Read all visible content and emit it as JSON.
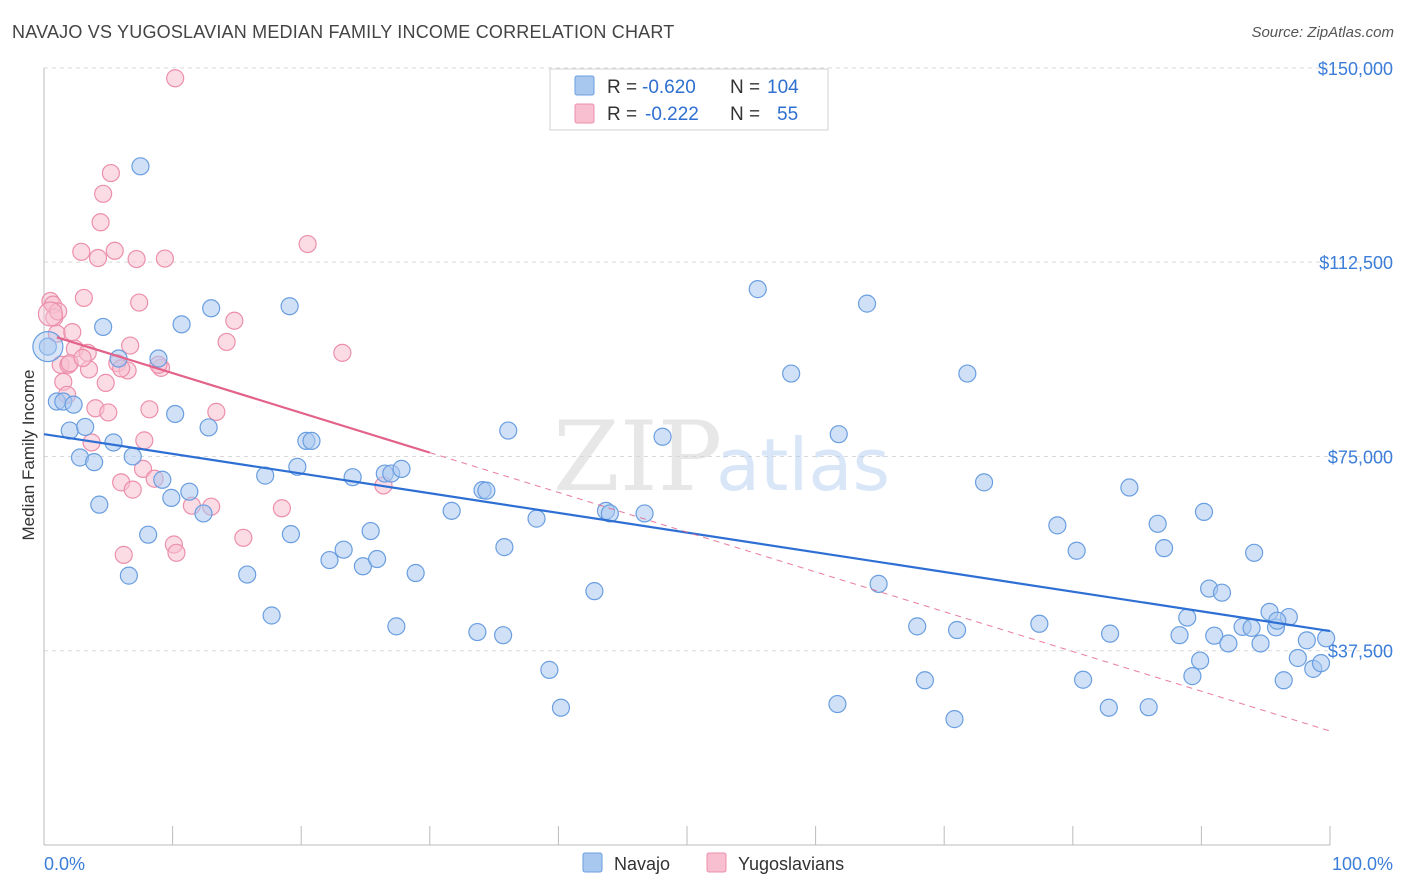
{
  "title": "NAVAJO VS YUGOSLAVIAN MEDIAN FAMILY INCOME CORRELATION CHART",
  "source": "Source: ZipAtlas.com",
  "watermark": {
    "zip": "ZIP",
    "atlas": "atlas"
  },
  "colors": {
    "navajo_fill": "#a9c8f0",
    "navajo_stroke": "#6a9ee0",
    "navajo_line": "#2e6fd4",
    "yugo_fill": "#f7bfd0",
    "yugo_stroke": "#ec8fab",
    "yugo_line": "#e2628a",
    "tick_text": "#3b7dd8",
    "grid": "#d9d9d9"
  },
  "legend": {
    "rows": [
      {
        "r_label": "R = ",
        "r_value": "-0.620",
        "n_label": "N = ",
        "n_value": "104",
        "series": "navajo"
      },
      {
        "r_label": "R = ",
        "r_value": "-0.222",
        "n_label": "N = ",
        "n_value": "55",
        "series": "yugo"
      }
    ]
  },
  "chart_data": {
    "type": "scatter",
    "title": "NAVAJO VS YUGOSLAVIAN MEDIAN FAMILY INCOME CORRELATION CHART",
    "xlabel": "",
    "ylabel": "Median Family Income",
    "xlim": [
      0,
      100
    ],
    "ylim": [
      0,
      155000
    ],
    "x_tick_labels": [
      "0.0%",
      "100.0%"
    ],
    "y_ticks": [
      37500,
      75000,
      112500,
      150000
    ],
    "y_tick_labels": [
      "$37,500",
      "$75,000",
      "$112,500",
      "$150,000"
    ],
    "legend_position": "top-center",
    "series": [
      {
        "name": "Navajo",
        "key": "navajo",
        "r": -0.62,
        "n": 104,
        "trend": {
          "x": [
            0,
            100
          ],
          "y": [
            79300,
            41300
          ],
          "dashed_from": null
        },
        "points": [
          [
            0.3,
            96200
          ],
          [
            1.0,
            85600
          ],
          [
            1.5,
            85600
          ],
          [
            2.3,
            85000
          ],
          [
            2.0,
            80000
          ],
          [
            3.2,
            80700
          ],
          [
            2.8,
            74800
          ],
          [
            3.9,
            73900
          ],
          [
            4.3,
            65700
          ],
          [
            5.4,
            77700
          ],
          [
            5.8,
            93900
          ],
          [
            4.6,
            100000
          ],
          [
            6.6,
            52000
          ],
          [
            6.9,
            75000
          ],
          [
            7.5,
            131000
          ],
          [
            8.1,
            59900
          ],
          [
            8.9,
            93900
          ],
          [
            9.2,
            70500
          ],
          [
            9.9,
            67000
          ],
          [
            10.2,
            83200
          ],
          [
            10.7,
            100500
          ],
          [
            11.3,
            68200
          ],
          [
            12.4,
            64000
          ],
          [
            12.8,
            80600
          ],
          [
            13.0,
            103600
          ],
          [
            15.8,
            52200
          ],
          [
            17.2,
            71300
          ],
          [
            17.7,
            44300
          ],
          [
            19.1,
            104000
          ],
          [
            19.2,
            60000
          ],
          [
            19.7,
            73000
          ],
          [
            20.4,
            78000
          ],
          [
            20.8,
            78000
          ],
          [
            22.2,
            55000
          ],
          [
            23.3,
            57000
          ],
          [
            24.0,
            71000
          ],
          [
            24.8,
            53800
          ],
          [
            25.4,
            60600
          ],
          [
            25.9,
            55200
          ],
          [
            26.5,
            71700
          ],
          [
            27.0,
            71700
          ],
          [
            27.4,
            42200
          ],
          [
            27.8,
            72600
          ],
          [
            28.9,
            52500
          ],
          [
            31.7,
            64500
          ],
          [
            33.7,
            41100
          ],
          [
            34.1,
            68500
          ],
          [
            34.4,
            68400
          ],
          [
            35.7,
            40500
          ],
          [
            35.8,
            57500
          ],
          [
            36.1,
            80000
          ],
          [
            38.3,
            63000
          ],
          [
            39.3,
            33800
          ],
          [
            40.2,
            26500
          ],
          [
            42.8,
            49000
          ],
          [
            43.7,
            64500
          ],
          [
            44.0,
            64000
          ],
          [
            46.7,
            64000
          ],
          [
            48.1,
            78800
          ],
          [
            55.5,
            107300
          ],
          [
            58.1,
            91000
          ],
          [
            61.7,
            27200
          ],
          [
            61.8,
            79300
          ],
          [
            64.0,
            104500
          ],
          [
            64.9,
            50400
          ],
          [
            67.9,
            42200
          ],
          [
            68.5,
            31800
          ],
          [
            70.8,
            24300
          ],
          [
            71.0,
            41500
          ],
          [
            71.8,
            91000
          ],
          [
            73.1,
            70000
          ],
          [
            77.4,
            42700
          ],
          [
            78.8,
            61700
          ],
          [
            80.3,
            56800
          ],
          [
            80.8,
            31900
          ],
          [
            82.8,
            26500
          ],
          [
            82.9,
            40800
          ],
          [
            84.4,
            69000
          ],
          [
            85.9,
            26600
          ],
          [
            86.6,
            62000
          ],
          [
            87.1,
            57300
          ],
          [
            88.3,
            40500
          ],
          [
            88.9,
            43900
          ],
          [
            89.3,
            32600
          ],
          [
            89.9,
            35600
          ],
          [
            90.2,
            64300
          ],
          [
            90.6,
            49500
          ],
          [
            91.0,
            40400
          ],
          [
            91.6,
            48700
          ],
          [
            92.1,
            38900
          ],
          [
            93.2,
            42100
          ],
          [
            93.9,
            41900
          ],
          [
            94.1,
            56400
          ],
          [
            94.6,
            38900
          ],
          [
            95.3,
            45000
          ],
          [
            95.8,
            42000
          ],
          [
            96.4,
            31800
          ],
          [
            97.5,
            36100
          ],
          [
            98.2,
            39500
          ],
          [
            98.7,
            34000
          ],
          [
            99.3,
            35100
          ],
          [
            99.7,
            39900
          ],
          [
            96.8,
            44000
          ],
          [
            95.9,
            43300
          ]
        ]
      },
      {
        "name": "Yugoslavians",
        "key": "yugo",
        "r": -0.222,
        "n": 55,
        "trend": {
          "x": [
            1.0,
            100
          ],
          "y": [
            98000,
            22000
          ],
          "solid_until_x": 30
        },
        "points": [
          [
            0.5,
            105000
          ],
          [
            0.7,
            104300
          ],
          [
            0.8,
            101800
          ],
          [
            1.0,
            98700
          ],
          [
            1.3,
            92700
          ],
          [
            1.5,
            89400
          ],
          [
            1.8,
            86900
          ],
          [
            1.9,
            92700
          ],
          [
            2.2,
            99000
          ],
          [
            2.4,
            95800
          ],
          [
            2.9,
            114500
          ],
          [
            3.1,
            105600
          ],
          [
            3.4,
            95000
          ],
          [
            3.5,
            91800
          ],
          [
            3.7,
            77700
          ],
          [
            4.0,
            84300
          ],
          [
            4.2,
            113300
          ],
          [
            4.4,
            120200
          ],
          [
            4.6,
            125700
          ],
          [
            4.8,
            89200
          ],
          [
            5.0,
            83500
          ],
          [
            5.2,
            129700
          ],
          [
            5.5,
            114700
          ],
          [
            5.7,
            93000
          ],
          [
            6.0,
            70000
          ],
          [
            6.2,
            56000
          ],
          [
            6.5,
            91600
          ],
          [
            6.7,
            96400
          ],
          [
            6.9,
            68600
          ],
          [
            7.2,
            113100
          ],
          [
            7.4,
            104700
          ],
          [
            7.7,
            72600
          ],
          [
            7.8,
            78100
          ],
          [
            8.2,
            84100
          ],
          [
            8.6,
            70700
          ],
          [
            9.1,
            92100
          ],
          [
            9.4,
            113200
          ],
          [
            10.1,
            58000
          ],
          [
            10.2,
            148000
          ],
          [
            11.5,
            65500
          ],
          [
            14.2,
            97100
          ],
          [
            14.8,
            101200
          ],
          [
            15.5,
            59300
          ],
          [
            18.5,
            65000
          ],
          [
            20.5,
            116000
          ],
          [
            23.2,
            95000
          ],
          [
            26.4,
            69400
          ],
          [
            13.4,
            83600
          ],
          [
            10.3,
            56400
          ],
          [
            1.1,
            103000
          ],
          [
            2.0,
            93000
          ],
          [
            3.0,
            94000
          ],
          [
            6.0,
            92000
          ],
          [
            8.9,
            92700
          ],
          [
            13.0,
            65300
          ]
        ]
      }
    ]
  },
  "bottom_legend": [
    {
      "label": "Navajo",
      "series": "navajo"
    },
    {
      "label": "Yugoslavians",
      "series": "yugo"
    }
  ]
}
